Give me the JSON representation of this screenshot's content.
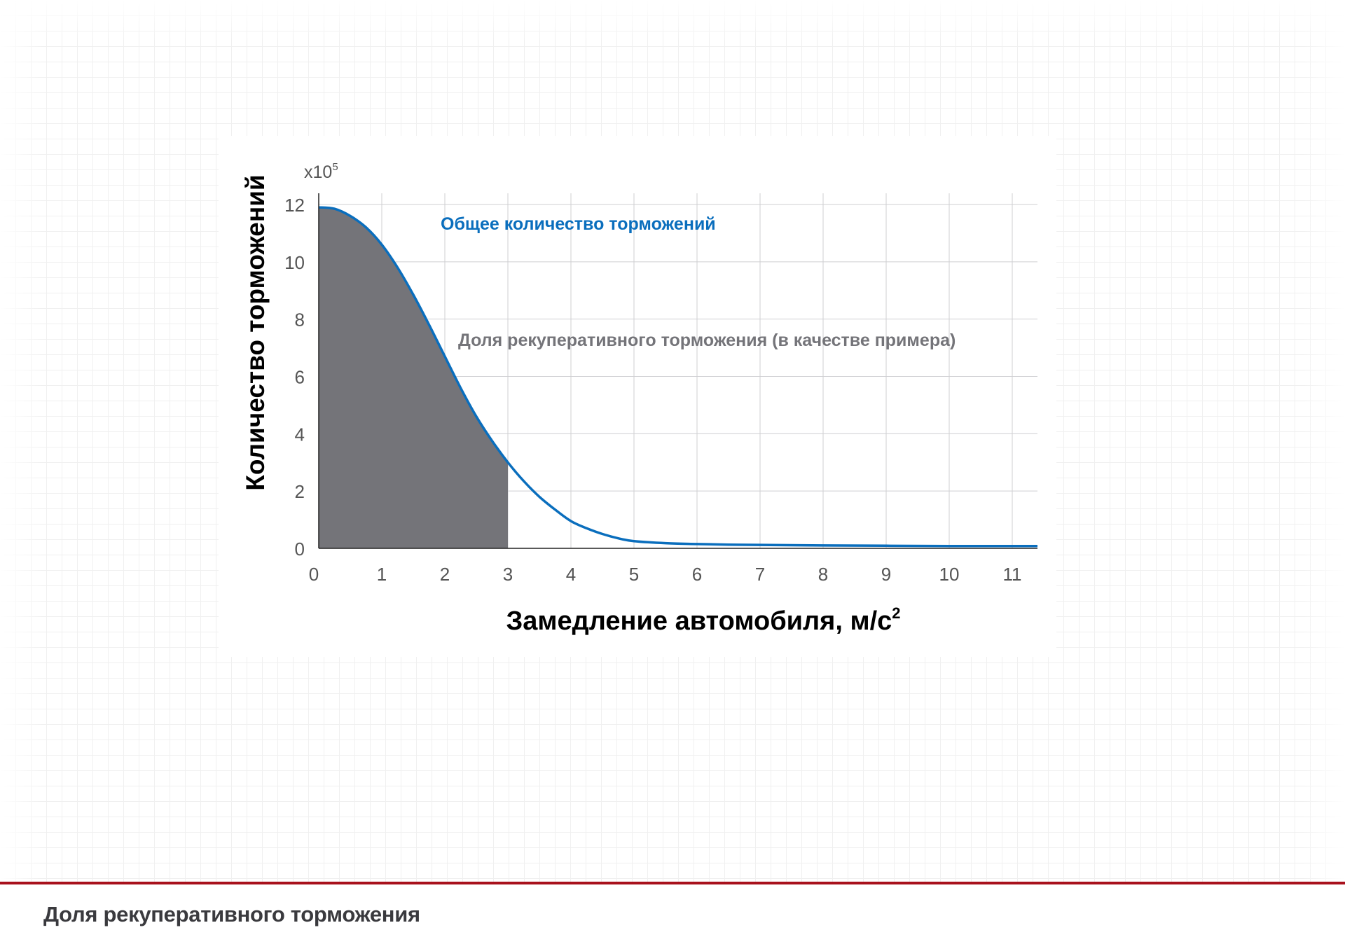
{
  "chart_data": {
    "type": "line",
    "multiplier_label": "x10",
    "multiplier_exponent": "5",
    "xlabel": "Замедление автомобиля, м/с",
    "xlabel_superscript": "2",
    "ylabel": "Количество торможений",
    "xlim": [
      0,
      11.4
    ],
    "ylim": [
      0,
      12
    ],
    "x_ticks": [
      0,
      1,
      2,
      3,
      4,
      5,
      6,
      7,
      8,
      9,
      10,
      11
    ],
    "x_tick_labels": [
      "0",
      "1",
      "2",
      "3",
      "4",
      "5",
      "6",
      "7",
      "8",
      "9",
      "10",
      "11"
    ],
    "y_ticks": [
      0,
      2,
      4,
      6,
      8,
      10,
      12
    ],
    "y_tick_labels": [
      "0",
      "2",
      "4",
      "6",
      "8",
      "10",
      "12"
    ],
    "grid": true,
    "series": [
      {
        "name": "Общее количество торможений",
        "color": "#0a6ebd",
        "x": [
          0,
          0.25,
          0.5,
          0.75,
          1.0,
          1.25,
          1.5,
          1.75,
          2.0,
          2.25,
          2.5,
          2.75,
          3.0,
          3.25,
          3.5,
          3.75,
          4.0,
          4.25,
          4.5,
          4.75,
          5.0,
          5.5,
          6.0,
          6.5,
          7.0,
          8.0,
          9.0,
          10.0,
          11.0,
          11.4
        ],
        "y": [
          11.9,
          11.85,
          11.6,
          11.2,
          10.6,
          9.8,
          8.85,
          7.8,
          6.7,
          5.6,
          4.6,
          3.75,
          3.0,
          2.35,
          1.8,
          1.35,
          0.95,
          0.7,
          0.5,
          0.35,
          0.25,
          0.18,
          0.15,
          0.13,
          0.12,
          0.1,
          0.09,
          0.08,
          0.08,
          0.08
        ]
      }
    ],
    "shaded_region": {
      "name": "Доля рекуперативного торможения (в качестве примера)",
      "color": "#747479",
      "x_range": [
        0,
        3
      ]
    }
  },
  "caption": "Доля рекуперативного торможения"
}
